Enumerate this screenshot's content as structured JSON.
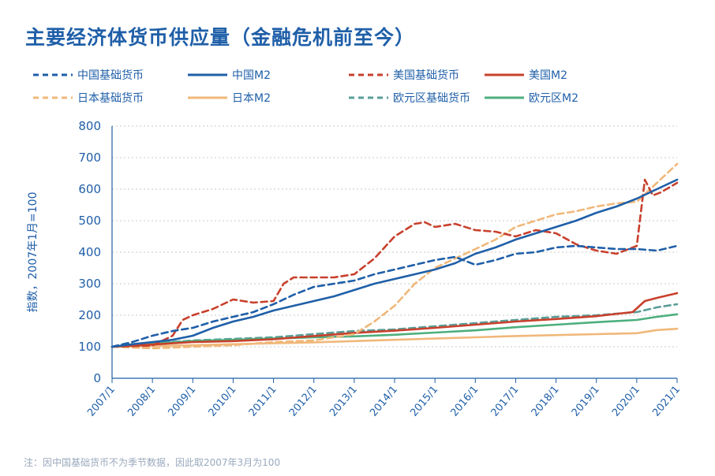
{
  "title": "主要经济体货币供应量（金融危机前至今）",
  "note": "注：因中国基础货币不为季节数据，因此取2007年3月为100",
  "colors": {
    "china": "#1f5fa8",
    "us": "#c8402c",
    "japan": "#f0b87a",
    "euro_base": "#5a9e98",
    "euro_m2": "#4caf7d",
    "grid": "#c8c8c8"
  },
  "legend": [
    {
      "label": "中国基础货币",
      "color": "#1f5fa8",
      "dash": true
    },
    {
      "label": "中国M2",
      "color": "#1f5fa8",
      "dash": false
    },
    {
      "label": "美国基础货币",
      "color": "#c8402c",
      "dash": true
    },
    {
      "label": "美国M2",
      "color": "#c8402c",
      "dash": false
    },
    {
      "label": "日本基础货币",
      "color": "#f0b87a",
      "dash": true
    },
    {
      "label": "日本M2",
      "color": "#f0b87a",
      "dash": false
    },
    {
      "label": "欧元区基础货币",
      "color": "#5a9e98",
      "dash": true
    },
    {
      "label": "欧元区M2",
      "color": "#4caf7d",
      "dash": false
    }
  ],
  "chart_data": {
    "type": "line",
    "title": "主要经济体货币供应量（金融危机前至今）",
    "ylabel": "指数，2007年1月=100",
    "xlabel": "",
    "ylim": [
      0,
      800
    ],
    "yticks": [
      0,
      100,
      200,
      300,
      400,
      500,
      600,
      700,
      800
    ],
    "xlim": [
      2007.0,
      2021.0
    ],
    "xticks": [
      "2007/1",
      "2008/1",
      "2009/1",
      "2010/1",
      "2011/1",
      "2012/1",
      "2013/1",
      "2014/1",
      "2015/1",
      "2016/1",
      "2017/1",
      "2018/1",
      "2019/1",
      "2020/1",
      "2021/1"
    ],
    "grid": "horizontal dashed",
    "legend_position": "top",
    "series": [
      {
        "name": "中国基础货币",
        "dash": true,
        "color": "#1f5fa8",
        "x": [
          2007.0,
          2007.5,
          2008.0,
          2008.5,
          2009.0,
          2009.5,
          2010.0,
          2010.5,
          2011.0,
          2011.5,
          2012.0,
          2012.5,
          2013.0,
          2013.5,
          2014.0,
          2014.5,
          2015.0,
          2015.5,
          2016.0,
          2016.5,
          2017.0,
          2017.5,
          2018.0,
          2018.5,
          2019.0,
          2019.5,
          2020.0,
          2020.5,
          2021.0
        ],
        "y": [
          100,
          115,
          135,
          150,
          160,
          180,
          195,
          210,
          235,
          265,
          290,
          300,
          310,
          330,
          345,
          360,
          375,
          385,
          360,
          375,
          395,
          400,
          415,
          420,
          415,
          410,
          410,
          405,
          420
        ]
      },
      {
        "name": "中国M2",
        "dash": false,
        "color": "#1f5fa8",
        "x": [
          2007.0,
          2007.5,
          2008.0,
          2008.5,
          2009.0,
          2009.5,
          2010.0,
          2010.5,
          2011.0,
          2011.5,
          2012.0,
          2012.5,
          2013.0,
          2013.5,
          2014.0,
          2014.5,
          2015.0,
          2015.5,
          2016.0,
          2016.5,
          2017.0,
          2017.5,
          2018.0,
          2018.5,
          2019.0,
          2019.5,
          2020.0,
          2020.5,
          2021.0
        ],
        "y": [
          100,
          108,
          115,
          122,
          135,
          160,
          180,
          195,
          215,
          230,
          245,
          260,
          280,
          300,
          315,
          330,
          345,
          365,
          395,
          415,
          440,
          460,
          480,
          500,
          525,
          545,
          570,
          600,
          630
        ]
      },
      {
        "name": "美国基础货币",
        "dash": true,
        "color": "#c8402c",
        "x": [
          2007.0,
          2007.5,
          2008.0,
          2008.5,
          2008.75,
          2009.0,
          2009.5,
          2010.0,
          2010.5,
          2011.0,
          2011.25,
          2011.5,
          2012.0,
          2012.5,
          2013.0,
          2013.5,
          2014.0,
          2014.5,
          2014.75,
          2015.0,
          2015.5,
          2016.0,
          2016.5,
          2017.0,
          2017.5,
          2018.0,
          2018.5,
          2019.0,
          2019.5,
          2020.0,
          2020.2,
          2020.4,
          2020.6,
          2021.0
        ],
        "y": [
          100,
          102,
          104,
          135,
          185,
          200,
          220,
          250,
          240,
          245,
          300,
          320,
          320,
          320,
          330,
          380,
          450,
          490,
          495,
          480,
          490,
          470,
          465,
          450,
          470,
          460,
          425,
          405,
          395,
          420,
          630,
          580,
          590,
          620
        ]
      },
      {
        "name": "美国M2",
        "dash": false,
        "color": "#c8402c",
        "x": [
          2007.0,
          2008.0,
          2009.0,
          2010.0,
          2011.0,
          2012.0,
          2013.0,
          2014.0,
          2015.0,
          2016.0,
          2017.0,
          2018.0,
          2019.0,
          2019.9,
          2020.2,
          2020.5,
          2021.0
        ],
        "y": [
          100,
          107,
          115,
          118,
          124,
          134,
          144,
          151,
          160,
          170,
          180,
          188,
          197,
          210,
          245,
          255,
          270
        ]
      },
      {
        "name": "日本基础货币",
        "dash": true,
        "color": "#f0b87a",
        "x": [
          2007.0,
          2008.0,
          2009.0,
          2010.0,
          2011.0,
          2012.0,
          2013.0,
          2013.5,
          2014.0,
          2014.5,
          2015.0,
          2015.5,
          2016.0,
          2016.5,
          2017.0,
          2017.5,
          2018.0,
          2018.5,
          2019.0,
          2019.5,
          2020.0,
          2020.5,
          2021.0
        ],
        "y": [
          100,
          95,
          100,
          105,
          115,
          120,
          140,
          180,
          230,
          300,
          350,
          380,
          410,
          440,
          480,
          500,
          520,
          530,
          545,
          555,
          560,
          620,
          680
        ]
      },
      {
        "name": "日本M2",
        "dash": false,
        "color": "#f0b87a",
        "x": [
          2007.0,
          2008.0,
          2009.0,
          2010.0,
          2011.0,
          2012.0,
          2013.0,
          2014.0,
          2015.0,
          2016.0,
          2017.0,
          2018.0,
          2019.0,
          2020.0,
          2020.5,
          2021.0
        ],
        "y": [
          100,
          102,
          105,
          108,
          111,
          114,
          118,
          122,
          126,
          130,
          134,
          137,
          140,
          143,
          153,
          157
        ]
      },
      {
        "name": "欧元区基础货币",
        "dash": true,
        "color": "#5a9e98",
        "x": [
          2007.0,
          2008.0,
          2009.0,
          2010.0,
          2011.0,
          2012.0,
          2013.0,
          2014.0,
          2015.0,
          2016.0,
          2017.0,
          2018.0,
          2019.0,
          2020.0,
          2020.5,
          2021.0
        ],
        "y": [
          100,
          110,
          120,
          125,
          130,
          140,
          150,
          155,
          165,
          175,
          185,
          195,
          200,
          210,
          225,
          235
        ]
      },
      {
        "name": "欧元区M2",
        "dash": false,
        "color": "#4caf7d",
        "x": [
          2007.0,
          2008.0,
          2009.0,
          2010.0,
          2011.0,
          2012.0,
          2013.0,
          2014.0,
          2015.0,
          2016.0,
          2017.0,
          2018.0,
          2019.0,
          2020.0,
          2020.5,
          2021.0
        ],
        "y": [
          100,
          110,
          118,
          122,
          126,
          130,
          133,
          138,
          145,
          152,
          162,
          170,
          178,
          185,
          195,
          203
        ]
      }
    ]
  }
}
